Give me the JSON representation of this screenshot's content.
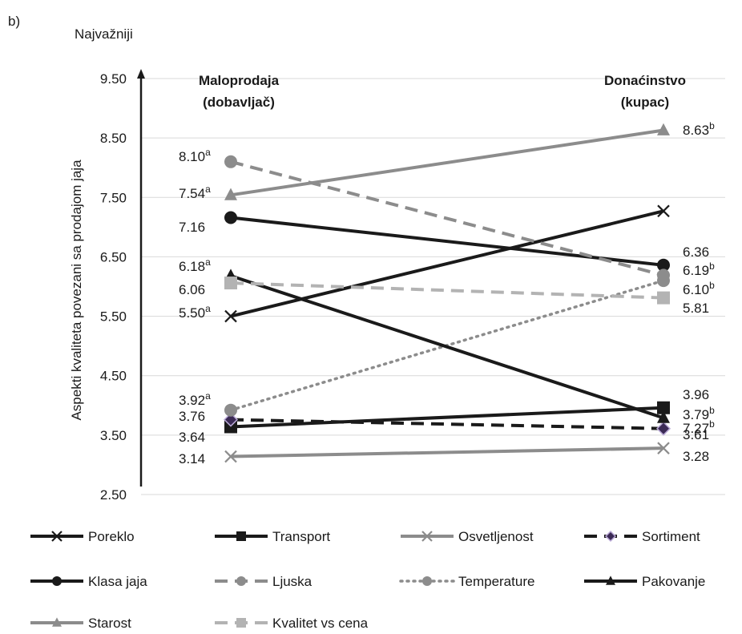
{
  "panel_label": "b)",
  "chart_data": {
    "type": "line",
    "top_label": "Najvažniji",
    "ylabel": "Aspekti kvaliteta povezani sa prodajom jaja",
    "ylim": [
      2.5,
      9.5
    ],
    "yticks": [
      "9.50",
      "8.50",
      "7.50",
      "6.50",
      "5.50",
      "4.50",
      "3.50",
      "2.50"
    ],
    "ytick_values": [
      9.5,
      8.5,
      7.5,
      6.5,
      5.5,
      4.5,
      3.5,
      2.5
    ],
    "grid": true,
    "legend_position": "bottom",
    "categories": [
      {
        "line1": "Maloprodaja",
        "line2": "(dobavljač)"
      },
      {
        "line1": "Donaćinstvo",
        "line2": "(kupac)"
      }
    ],
    "series": [
      {
        "name": "Poreklo",
        "values": [
          5.5,
          7.27
        ],
        "labels": [
          {
            "main": "5.50",
            "sup": "a"
          },
          {
            "main": "7.27",
            "sup": "b"
          }
        ],
        "color": "#1a1a1a",
        "dash": "solid",
        "marker": "x"
      },
      {
        "name": "Transport",
        "values": [
          3.64,
          3.96
        ],
        "labels": [
          {
            "main": "3.64",
            "sup": ""
          },
          {
            "main": "3.96",
            "sup": ""
          }
        ],
        "color": "#1a1a1a",
        "dash": "solid",
        "marker": "square"
      },
      {
        "name": "Osvetljenost",
        "values": [
          3.14,
          3.28
        ],
        "labels": [
          {
            "main": "3.14",
            "sup": ""
          },
          {
            "main": "3.28",
            "sup": ""
          }
        ],
        "color": "#8c8c8c",
        "dash": "solid",
        "marker": "x"
      },
      {
        "name": "Sortiment",
        "values": [
          3.76,
          3.61
        ],
        "labels": [
          {
            "main": "3.76",
            "sup": ""
          },
          {
            "main": "3.61",
            "sup": ""
          }
        ],
        "color": "#1a1a1a",
        "dash": "dashed",
        "marker": "diamond"
      },
      {
        "name": "Klasa jaja",
        "values": [
          7.16,
          6.36
        ],
        "labels": [
          {
            "main": "7.16",
            "sup": ""
          },
          {
            "main": "6.36",
            "sup": ""
          }
        ],
        "color": "#1a1a1a",
        "dash": "solid",
        "marker": "circle"
      },
      {
        "name": "Ljuska",
        "values": [
          8.1,
          6.19
        ],
        "labels": [
          {
            "main": "8.10",
            "sup": "a"
          },
          {
            "main": "6.19",
            "sup": "b"
          }
        ],
        "color": "#8c8c8c",
        "dash": "dashed",
        "marker": "circle"
      },
      {
        "name": "Temperature",
        "values": [
          3.92,
          6.1
        ],
        "labels": [
          {
            "main": "3.92",
            "sup": "a"
          },
          {
            "main": "6.10",
            "sup": "b"
          }
        ],
        "color": "#8c8c8c",
        "dash": "dotted",
        "marker": "circle"
      },
      {
        "name": "Pakovanje",
        "values": [
          6.18,
          3.79
        ],
        "labels": [
          {
            "main": "6.18",
            "sup": "a"
          },
          {
            "main": "3.79",
            "sup": "b"
          }
        ],
        "color": "#1a1a1a",
        "dash": "solid",
        "marker": "triangle"
      },
      {
        "name": "Starost",
        "values": [
          7.54,
          8.63
        ],
        "labels": [
          {
            "main": "7.54",
            "sup": "a"
          },
          {
            "main": "8.63",
            "sup": "b"
          }
        ],
        "color": "#8c8c8c",
        "dash": "solid",
        "marker": "triangle"
      },
      {
        "name": "Kvalitet vs cena",
        "values": [
          6.06,
          5.81
        ],
        "labels": [
          {
            "main": "6.06",
            "sup": ""
          },
          {
            "main": "5.81",
            "sup": ""
          }
        ],
        "color": "#b3b3b3",
        "dash": "dashed",
        "marker": "square"
      }
    ]
  }
}
